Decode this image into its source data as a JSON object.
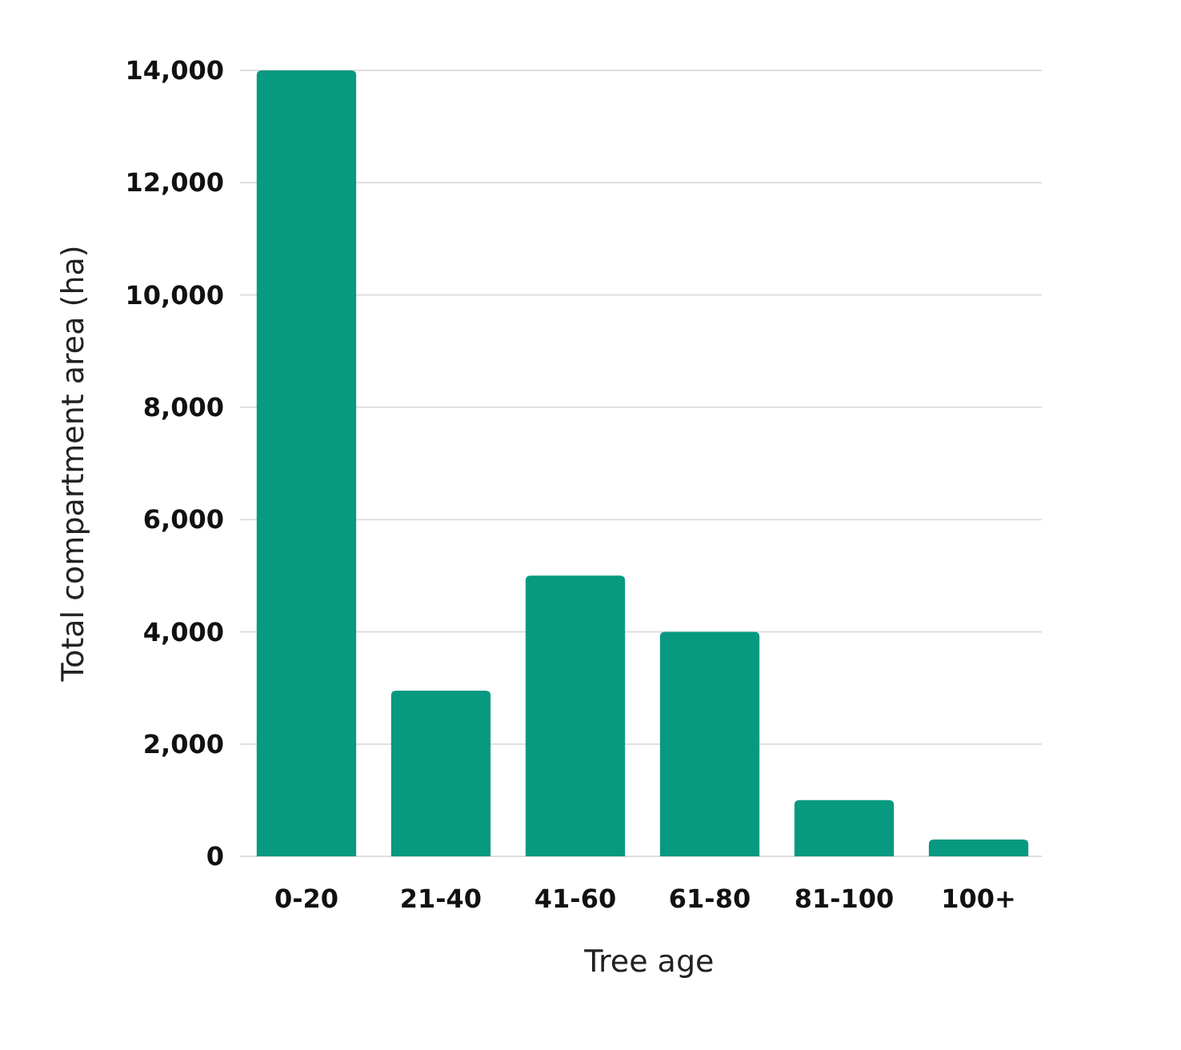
{
  "chart_data": {
    "type": "bar",
    "xlabel": "Tree age",
    "ylabel": "Total compartment area (ha)",
    "categories": [
      "0-20",
      "21-40",
      "41-60",
      "61-80",
      "81-100",
      "100+"
    ],
    "values": [
      14000,
      2950,
      5000,
      4000,
      1000,
      300
    ],
    "color": "#089981",
    "ylim": [
      0,
      14000
    ],
    "yticks": [
      0,
      {
        "value": 2000,
        "label": "2,000"
      },
      {
        "value": 4000,
        "label": "4,000"
      },
      {
        "value": 6000,
        "label": "6,000"
      },
      {
        "value": 8000,
        "label": "8,000"
      },
      {
        "value": 10000,
        "label": "10,000"
      },
      {
        "value": 12000,
        "label": "12,000"
      },
      {
        "value": 14000,
        "label": "14,000"
      }
    ],
    "grid": "y"
  }
}
